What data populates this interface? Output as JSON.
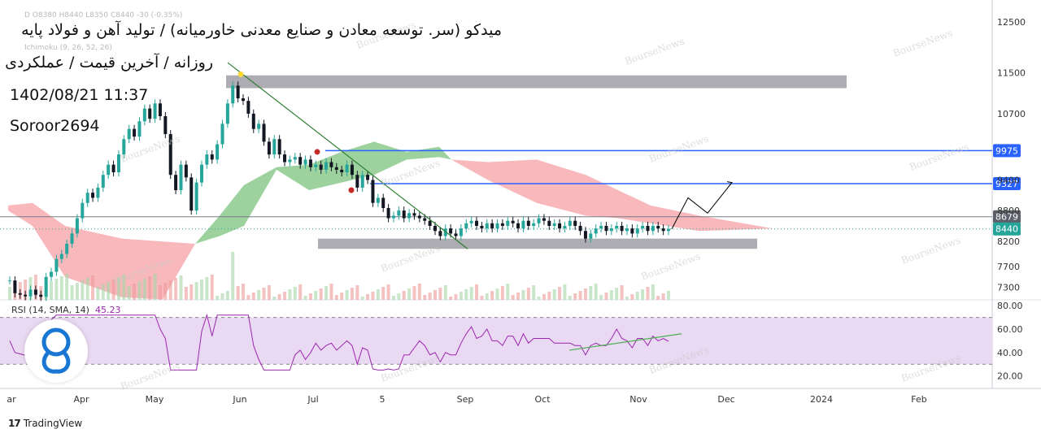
{
  "header": {
    "title": "میدکو (سر. توسعه معادن و صنایع معدنی خاورمیانه) / تولید آهن و فولاد پایه",
    "subtitle": "روزانه / آخرین قیمت / عملکردی",
    "datetime": "1402/08/21 11:37",
    "author": "Soroor2694",
    "ohlc_faint": "D  O8380  H8440  L8350  C8440  -30 (-0.35%)",
    "ichimoku_faint": "Ichimoku (9, 26, 52, 26)"
  },
  "watermark": "BourseNews",
  "brand": "TradingView",
  "colors": {
    "up": "#26a69a",
    "down": "#131722",
    "cloud_bull": "#7cc37f",
    "cloud_bear": "#f5a0a5",
    "level_line": "#2962ff",
    "zone": "#9e9ea4",
    "rsi": "#9c27b0",
    "rsi_band": "#ead9f2",
    "trendline": "#2e7d32",
    "price_badge": "#26a69a"
  },
  "chart_data": {
    "type": "candlestick",
    "y_axis_ticks": [
      12500,
      11500,
      10700,
      9400,
      8800,
      8200,
      7700,
      7300
    ],
    "ylim": [
      7050,
      12800
    ],
    "x_axis_ticks": [
      "ar",
      "Apr",
      "May",
      "Jun",
      "Jul",
      "5",
      "Sep",
      "Oct",
      "Nov",
      "Dec",
      "2024",
      "Feb"
    ],
    "price_labels": [
      {
        "label": "9975",
        "value": 9975,
        "kind": "resistance"
      },
      {
        "label": "9327",
        "value": 9327,
        "kind": "resistance"
      },
      {
        "label": "8679",
        "value": 8679,
        "kind": "level"
      },
      {
        "label": "8440",
        "value": 8440,
        "kind": "last"
      }
    ],
    "zones": [
      {
        "name": "upper supply zone",
        "low": 11200,
        "high": 11450
      },
      {
        "name": "lower demand zone",
        "low": 8050,
        "high": 8250
      }
    ],
    "trendline": {
      "from": {
        "x": "Jun",
        "y": 11700
      },
      "to": {
        "x": "Aug end",
        "y": 8050
      }
    },
    "projection_path": [
      8440,
      9050,
      8750,
      9350
    ],
    "candles_close": [
      7430,
      7180,
      7150,
      7120,
      7250,
      7150,
      7110,
      7500,
      7600,
      7850,
      7950,
      8150,
      8350,
      8650,
      8950,
      9150,
      9050,
      9250,
      9500,
      9700,
      9550,
      9900,
      10200,
      10400,
      10250,
      10550,
      10800,
      10600,
      10900,
      10650,
      10300,
      9500,
      9200,
      9700,
      9450,
      8800,
      9350,
      9700,
      9900,
      9800,
      10100,
      10500,
      10900,
      11250,
      11000,
      10950,
      10700,
      10400,
      10500,
      10150,
      9900,
      10200,
      9900,
      9750,
      9800,
      9850,
      9700,
      9800,
      9650,
      9700,
      9600,
      9750,
      9650,
      9600,
      9550,
      9700,
      9500,
      9250,
      9500,
      9400,
      8950,
      9050,
      8850,
      8650,
      8700,
      8800,
      8650,
      8750,
      8700,
      8650,
      8600,
      8500,
      8400,
      8300,
      8450,
      8350,
      8300,
      8450,
      8550,
      8600,
      8500,
      8450,
      8550,
      8450,
      8550,
      8500,
      8600,
      8550,
      8450,
      8600,
      8500,
      8550,
      8650,
      8600,
      8500,
      8550,
      8450,
      8500,
      8600,
      8500,
      8400,
      8250,
      8350,
      8450,
      8500,
      8400,
      8450,
      8500,
      8400,
      8450,
      8350,
      8450,
      8500,
      8400,
      8500,
      8450,
      8400,
      8440
    ],
    "rsi": {
      "label": "RSI (14, SMA, 14)",
      "value": 45.23,
      "levels": [
        80,
        60,
        40,
        20
      ],
      "band": [
        30,
        70
      ],
      "divergence_line": {
        "from": 42,
        "to": 56
      }
    }
  }
}
